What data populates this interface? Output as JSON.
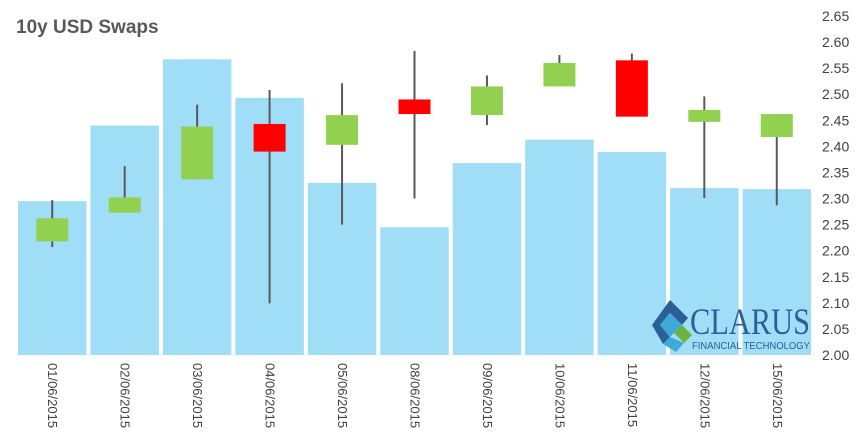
{
  "chart_data": {
    "type": "candlestick",
    "title": "10y USD Swaps",
    "xlabel": "",
    "ylabel": "",
    "ylim": [
      2.0,
      2.65
    ],
    "yticks": [
      "2.00",
      "2.05",
      "2.10",
      "2.15",
      "2.20",
      "2.25",
      "2.30",
      "2.35",
      "2.40",
      "2.45",
      "2.50",
      "2.55",
      "2.60",
      "2.65"
    ],
    "grid": false,
    "legend": "none",
    "categories": [
      "01/06/2015",
      "02/06/2015",
      "03/06/2015",
      "04/06/2015",
      "05/06/2015",
      "08/06/2015",
      "09/06/2015",
      "10/06/2015",
      "11/06/2015",
      "12/06/2015",
      "15/06/2015"
    ],
    "background_bars": [
      2.295,
      2.44,
      2.567,
      2.493,
      2.33,
      2.245,
      2.368,
      2.413,
      2.389,
      2.32,
      2.318
    ],
    "candles": [
      {
        "open": 2.218,
        "close": 2.262,
        "high": 2.297,
        "low": 2.207
      },
      {
        "open": 2.273,
        "close": 2.302,
        "high": 2.362,
        "low": 2.273
      },
      {
        "open": 2.337,
        "close": 2.438,
        "high": 2.48,
        "low": 2.337
      },
      {
        "open": 2.443,
        "close": 2.39,
        "high": 2.508,
        "low": 2.099
      },
      {
        "open": 2.403,
        "close": 2.46,
        "high": 2.521,
        "low": 2.25
      },
      {
        "open": 2.49,
        "close": 2.462,
        "high": 2.583,
        "low": 2.3
      },
      {
        "open": 2.46,
        "close": 2.515,
        "high": 2.536,
        "low": 2.441
      },
      {
        "open": 2.515,
        "close": 2.56,
        "high": 2.575,
        "low": 2.515
      },
      {
        "open": 2.565,
        "close": 2.457,
        "high": 2.578,
        "low": 2.457
      },
      {
        "open": 2.447,
        "close": 2.47,
        "high": 2.496,
        "low": 2.301
      },
      {
        "open": 2.418,
        "close": 2.462,
        "high": 2.462,
        "low": 2.287
      }
    ],
    "colors": {
      "background_bar": "#a0ddf6",
      "up": "#92d050",
      "down": "#ff0000",
      "wick": "#595959"
    }
  },
  "logo": {
    "name": "CLARUS",
    "tagline": "FINANCIAL TECHNOLOGY",
    "colors": {
      "dark": "#2a5f98",
      "light": "#3fa9d8",
      "green": "#6cb33f"
    }
  }
}
